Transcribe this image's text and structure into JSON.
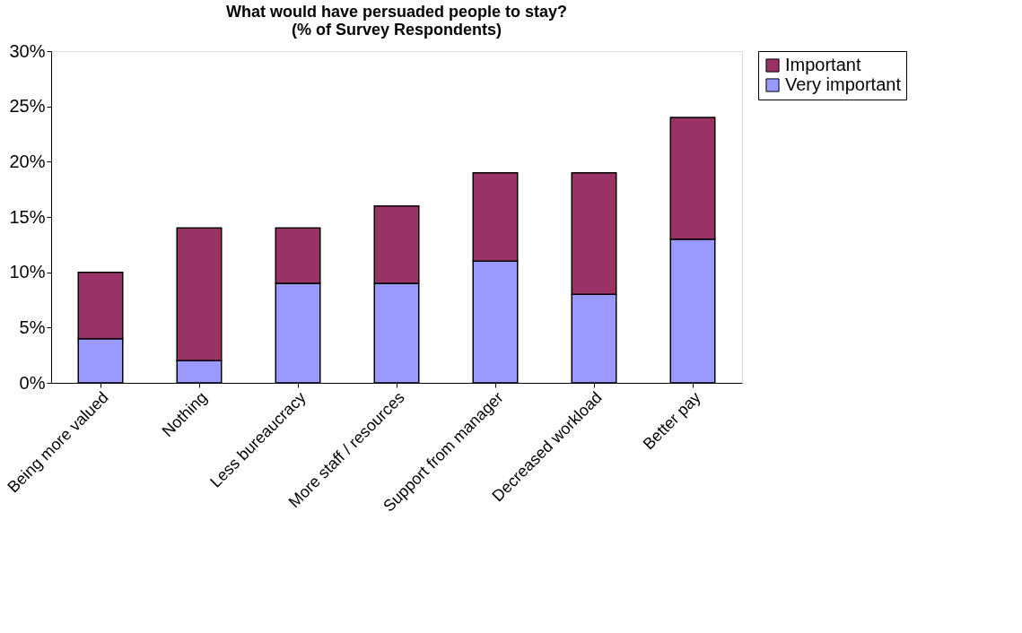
{
  "chart_data": {
    "type": "bar",
    "title": "What would have persuaded people to stay?\n(% of Survey Respondents)",
    "categories": [
      "Being more valued",
      "Nothing",
      "Less bureaucracy",
      "More staff / resources",
      "Support from manager",
      "Decreased workload",
      "Better pay"
    ],
    "stacked": true,
    "series": [
      {
        "name": "Very important",
        "color": "#9999ff",
        "values": [
          4,
          2,
          9,
          9,
          11,
          8,
          13
        ]
      },
      {
        "name": "Important",
        "color": "#993366",
        "values": [
          6,
          12,
          5,
          7,
          8,
          11,
          11
        ]
      }
    ],
    "ylim": [
      0,
      30
    ],
    "yticks": [
      {
        "value": 0,
        "label": "0%"
      },
      {
        "value": 5,
        "label": "5%"
      },
      {
        "value": 10,
        "label": "10%"
      },
      {
        "value": 15,
        "label": "15%"
      },
      {
        "value": 20,
        "label": "20%"
      },
      {
        "value": 25,
        "label": "25%"
      },
      {
        "value": 30,
        "label": "30%"
      }
    ],
    "grid": false,
    "legend": "right"
  }
}
